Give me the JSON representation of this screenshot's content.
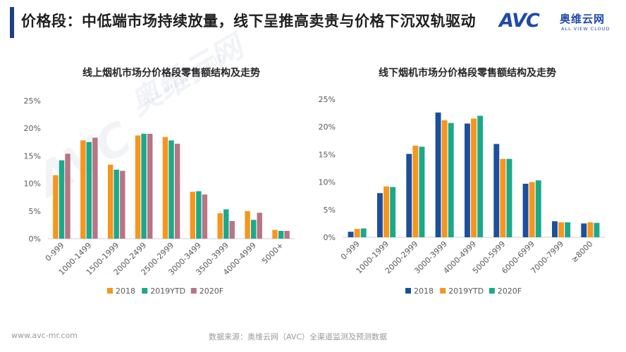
{
  "header": {
    "title": "价格段：中低端市场持续放量，线下呈推高卖贵与价格下沉双轨驱动"
  },
  "logo": {
    "brand": "AVC",
    "name": "奥维云网",
    "tagline": "ALL VIEW CLOUD"
  },
  "watermark": {
    "brand": "AVC",
    "name": "奥维云网",
    "tagline": "ALL VIEW CLOUD"
  },
  "footer": {
    "website": "www.avc-mr.com",
    "source": "数据来源：奥维云网（AVC）全渠道监测及预测数据"
  },
  "colors": {
    "title_accent": "#1f3f80",
    "series_2018_online": "#f7951d",
    "series_2019_online": "#1ba98a",
    "series_2020_online": "#b77585",
    "series_2018_offline": "#1c4f9c",
    "series_2019_offline": "#f7951d",
    "series_2020_offline": "#1ba98a"
  },
  "chart_data": [
    {
      "type": "bar",
      "title": "线上烟机市场分价格段零售额结构及走势",
      "categories": [
        "0-999",
        "1000-1499",
        "1500-1999",
        "2000-2499",
        "2500-2999",
        "3000-3499",
        "3500-3999",
        "4000-4999",
        "5000+"
      ],
      "series": [
        {
          "name": "2018",
          "color": "#f7951d",
          "values": [
            11.5,
            17.8,
            13.4,
            18.7,
            18.4,
            8.5,
            4.6,
            5.0,
            1.6
          ]
        },
        {
          "name": "2019YTD",
          "color": "#1ba98a",
          "values": [
            14.2,
            17.5,
            12.5,
            19.0,
            17.8,
            8.6,
            5.3,
            3.4,
            1.4
          ]
        },
        {
          "name": "2020F",
          "color": "#b77585",
          "values": [
            15.4,
            18.3,
            12.3,
            19.0,
            17.2,
            8.0,
            3.2,
            4.7,
            1.4
          ]
        }
      ],
      "yticks": [
        "0%",
        "5%",
        "10%",
        "15%",
        "20%",
        "25%"
      ],
      "ylim": [
        0,
        25
      ],
      "grid": false,
      "legend": "bottom"
    },
    {
      "type": "bar",
      "title": "线下烟机市场分价格段零售额结构及走势",
      "categories": [
        "0-999",
        "1000-1999",
        "2000-2999",
        "3000-3999",
        "4000-4999",
        "5000-5999",
        "6000-6999",
        "7000-7999",
        "≥8000"
      ],
      "series": [
        {
          "name": "2018",
          "color": "#1c4f9c",
          "values": [
            1.0,
            8.0,
            15.1,
            22.6,
            20.6,
            16.9,
            9.7,
            2.9,
            2.5
          ]
        },
        {
          "name": "2019YTD",
          "color": "#f7951d",
          "values": [
            1.5,
            9.2,
            16.6,
            21.2,
            21.5,
            14.2,
            10.0,
            2.7,
            2.7
          ]
        },
        {
          "name": "2020F",
          "color": "#1ba98a",
          "values": [
            1.6,
            9.1,
            16.4,
            20.7,
            22.0,
            14.2,
            10.3,
            2.7,
            2.6
          ]
        }
      ],
      "yticks": [
        "0%",
        "5%",
        "10%",
        "15%",
        "20%",
        "25%"
      ],
      "ylim": [
        0,
        25
      ],
      "grid": false,
      "legend": "bottom"
    }
  ]
}
